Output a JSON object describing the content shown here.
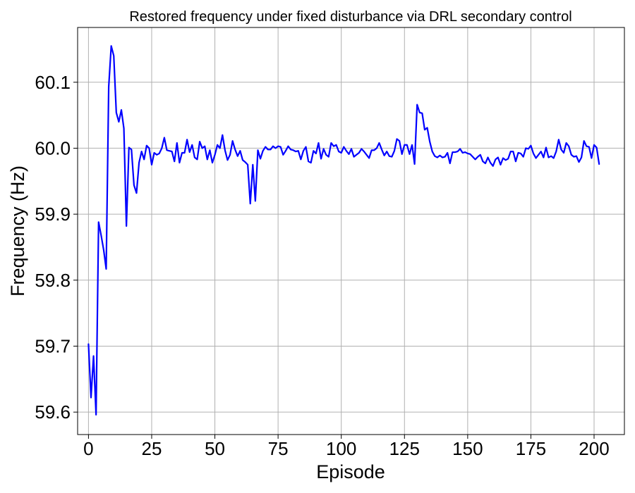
{
  "chart_data": {
    "type": "line",
    "title": "Restored frequency under fixed disturbance via DRL secondary control",
    "xlabel": "Episode",
    "ylabel": "Frequency (Hz)",
    "xlim": [
      -4.3,
      212
    ],
    "ylim": [
      59.566,
      60.183
    ],
    "xticks": [
      0,
      25,
      50,
      75,
      100,
      125,
      150,
      175,
      200
    ],
    "yticks": [
      59.6,
      59.7,
      59.8,
      59.9,
      60.0,
      60.1
    ],
    "ytick_labels": [
      "59.6",
      "59.7",
      "59.8",
      "59.9",
      "60.0",
      "60.1"
    ],
    "grid": true,
    "line_color": "#0000ff",
    "series": [
      {
        "x_start": 0,
        "values": [
          59.703,
          59.622,
          59.685,
          59.596,
          59.888,
          59.868,
          59.846,
          59.817,
          60.093,
          60.155,
          60.14,
          60.054,
          60.04,
          60.058,
          60.03,
          59.882,
          60.001,
          59.998,
          59.944,
          59.932,
          59.978,
          59.995,
          59.983,
          60.004,
          60.0,
          59.975,
          59.993,
          59.99,
          59.992,
          60.0,
          60.016,
          59.997,
          59.996,
          59.995,
          59.98,
          60.008,
          59.978,
          59.993,
          59.993,
          60.013,
          59.994,
          60.005,
          59.986,
          59.983,
          60.01,
          60.0,
          60.003,
          59.983,
          59.997,
          59.978,
          59.99,
          60.005,
          60.0,
          60.02,
          59.997,
          59.982,
          59.99,
          60.011,
          59.998,
          59.988,
          59.996,
          59.982,
          59.979,
          59.975,
          59.916,
          59.975,
          59.92,
          59.997,
          59.984,
          59.996,
          60.002,
          59.998,
          59.998,
          60.003,
          60.0,
          60.003,
          60.002,
          59.99,
          59.996,
          60.003,
          59.998,
          59.997,
          59.995,
          59.996,
          59.983,
          59.996,
          60.002,
          59.98,
          59.978,
          59.996,
          59.992,
          60.008,
          59.984,
          59.999,
          59.99,
          59.987,
          60.008,
          60.003,
          60.005,
          59.995,
          59.993,
          60.002,
          59.996,
          59.991,
          59.999,
          59.987,
          59.99,
          59.993,
          59.999,
          59.995,
          59.99,
          59.985,
          59.997,
          59.997,
          60.0,
          60.008,
          59.998,
          59.989,
          59.995,
          59.988,
          59.987,
          59.996,
          60.014,
          60.011,
          59.991,
          60.005,
          60.005,
          59.991,
          60.005,
          59.976,
          60.066,
          60.054,
          60.053,
          60.028,
          60.031,
          60.01,
          59.995,
          59.988,
          59.986,
          59.989,
          59.986,
          59.987,
          59.993,
          59.977,
          59.994,
          59.994,
          59.995,
          59.999,
          59.993,
          59.994,
          59.992,
          59.991,
          59.987,
          59.983,
          59.987,
          59.99,
          59.98,
          59.977,
          59.986,
          59.978,
          59.973,
          59.983,
          59.986,
          59.975,
          59.985,
          59.982,
          59.984,
          59.995,
          59.995,
          59.98,
          59.993,
          59.992,
          59.987,
          60.0,
          59.999,
          60.004,
          59.992,
          59.985,
          59.99,
          59.995,
          59.986,
          60.001,
          59.986,
          59.988,
          59.985,
          59.995,
          60.013,
          59.998,
          59.993,
          60.008,
          60.003,
          59.99,
          59.987,
          59.988,
          59.979,
          59.986,
          60.011,
          60.003,
          60.002,
          59.985,
          60.005,
          60.001,
          59.976
        ]
      }
    ]
  }
}
